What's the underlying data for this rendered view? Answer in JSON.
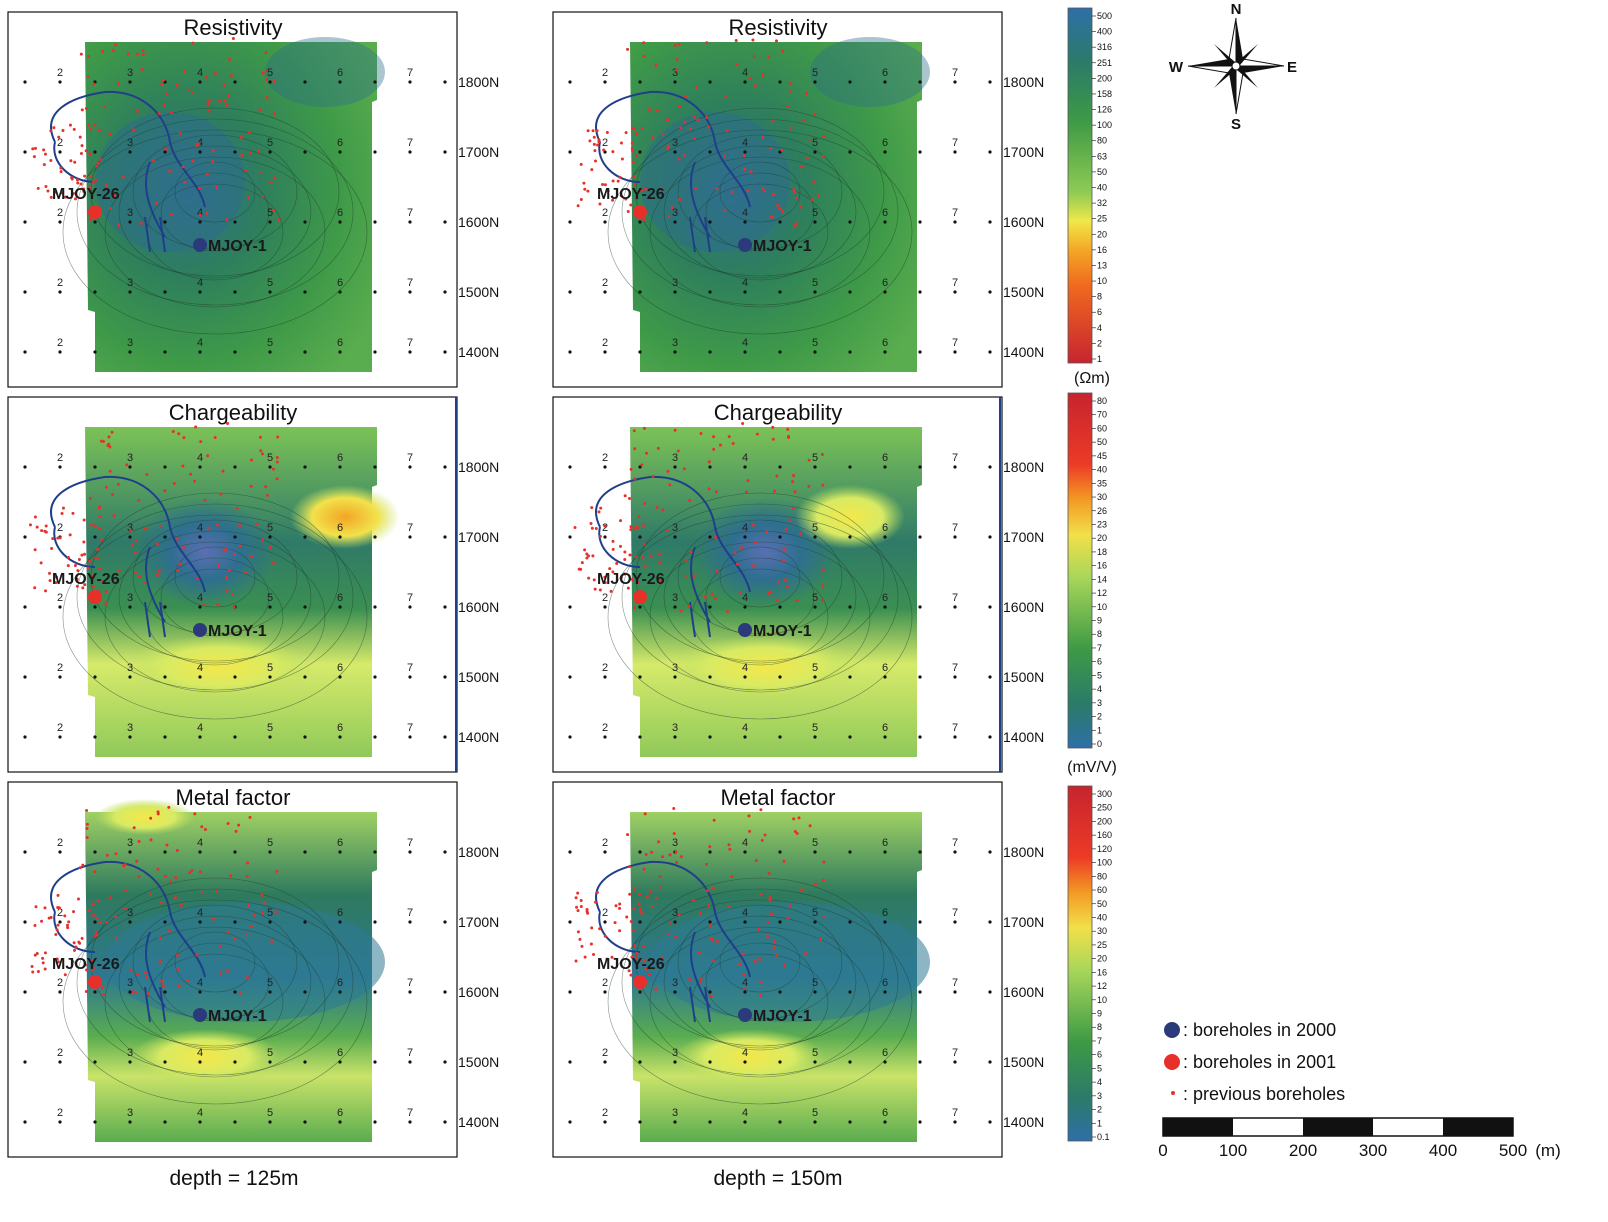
{
  "panel_titles": {
    "resistivity": "Resistivity",
    "chargeability": "Chargeability",
    "metal_factor": "Metal factor"
  },
  "northing_labels": [
    "1800N",
    "1700N",
    "1600N",
    "1500N",
    "1400N"
  ],
  "line_labels": [
    "2",
    "3",
    "4",
    "5",
    "6",
    "7"
  ],
  "boreholes": {
    "mjoy1": "MJOY-1",
    "mjoy26": "MJOY-26"
  },
  "depths": {
    "left": "depth = 125m",
    "right": "depth = 150m"
  },
  "color_scales": {
    "resistivity": {
      "unit": "(Ωm)",
      "ticks": [
        "500",
        "400",
        "316",
        "251",
        "200",
        "158",
        "126",
        "100",
        "80",
        "63",
        "50",
        "40",
        "32",
        "25",
        "20",
        "16",
        "13",
        "10",
        "8",
        "6",
        "4",
        "2",
        "1"
      ]
    },
    "chargeability": {
      "unit": "(mV/V)",
      "ticks": [
        "80",
        "70",
        "60",
        "50",
        "45",
        "40",
        "35",
        "30",
        "26",
        "23",
        "20",
        "18",
        "16",
        "14",
        "12",
        "10",
        "9",
        "8",
        "7",
        "6",
        "5",
        "4",
        "3",
        "2",
        "1",
        "0"
      ]
    },
    "metal_factor": {
      "unit": "",
      "ticks": [
        "300",
        "250",
        "200",
        "160",
        "120",
        "100",
        "80",
        "60",
        "50",
        "40",
        "30",
        "25",
        "20",
        "16",
        "12",
        "10",
        "9",
        "8",
        "7",
        "6",
        "5",
        "4",
        "3",
        "2",
        "1",
        "0.1"
      ]
    }
  },
  "compass": {
    "n": "N",
    "s": "S",
    "e": "E",
    "w": "W"
  },
  "legend": {
    "items": [
      {
        "label": ": boreholes in 2000",
        "color": "#2b3a7a"
      },
      {
        "label": ": boreholes in 2001",
        "color": "#e8302a"
      },
      {
        "label": ": previous boreholes",
        "color": "#e8302a"
      }
    ]
  },
  "scale_bar": {
    "ticks": [
      "0",
      "100",
      "200",
      "300",
      "400",
      "500"
    ],
    "unit": "(m)"
  },
  "colors": {
    "deep_blue": "#2e6fa0",
    "green_dark": "#2f7a3a",
    "green_mid": "#4ea64a",
    "yellow_green": "#c7e36a",
    "yellow": "#f2e84a",
    "orange": "#f5a623",
    "red": "#e02a2a",
    "polygon": "#1f3f8a",
    "borehole_2000": "#2b3a7a",
    "borehole_2001": "#e8302a"
  }
}
